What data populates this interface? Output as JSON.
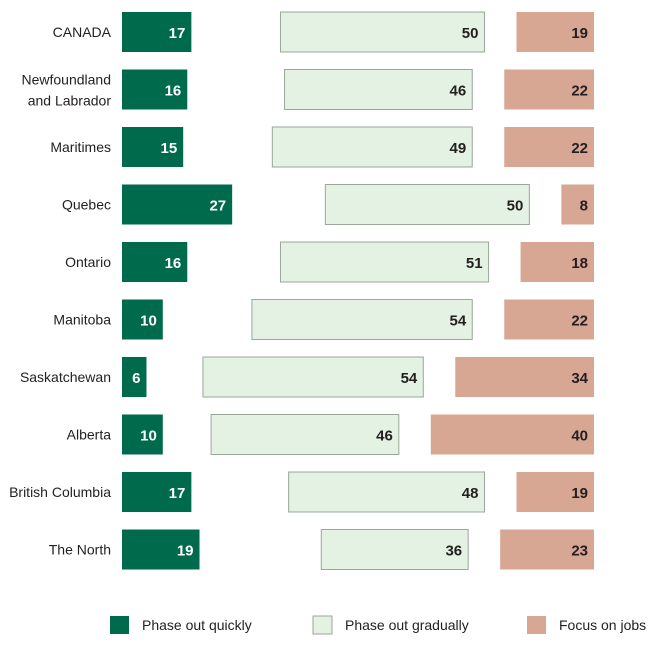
{
  "chart_data": {
    "type": "bar",
    "orientation": "horizontal",
    "stacked": true,
    "categories": [
      [
        "CANADA"
      ],
      [
        "Newfoundland",
        "and Labrador"
      ],
      [
        "Maritimes"
      ],
      [
        "Quebec"
      ],
      [
        "Ontario"
      ],
      [
        "Manitoba"
      ],
      [
        "Saskatchewan"
      ],
      [
        "Alberta"
      ],
      [
        "British Columbia"
      ],
      [
        "The North"
      ]
    ],
    "series": [
      {
        "name": "Phase out quickly",
        "color": "#006a4d",
        "label_color": "#ffffff",
        "values": [
          17,
          16,
          15,
          27,
          16,
          10,
          6,
          10,
          17,
          19
        ]
      },
      {
        "name": "Phase out gradually",
        "color": "#e3f2e3",
        "label_color": "#231f20",
        "values": [
          50,
          46,
          49,
          50,
          51,
          54,
          54,
          46,
          48,
          36
        ]
      },
      {
        "name": "Focus on jobs",
        "color": "#d8a794",
        "label_color": "#231f20",
        "values": [
          19,
          22,
          22,
          8,
          18,
          22,
          34,
          40,
          19,
          23
        ]
      }
    ],
    "legend_position": "bottom",
    "grid": false
  }
}
